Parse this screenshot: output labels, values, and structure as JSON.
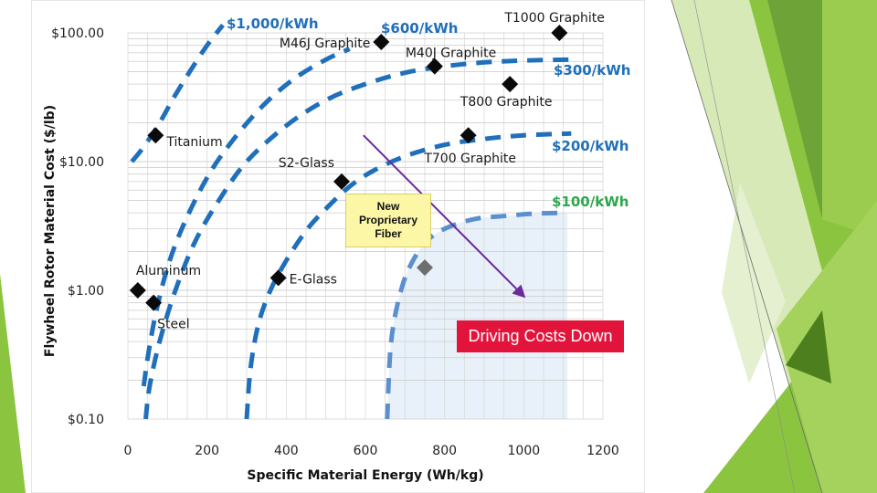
{
  "theme": {
    "light_green": "#b9d871",
    "green": "#8bc53f",
    "dark_green": "#4e7f1e",
    "blue": "#1f6fba",
    "light_blue": "#5b8fd0",
    "dollar_green": "#2aa84a",
    "arrow_purple": "#6a2a9a",
    "callout_red": "#e3143b",
    "callout_yellow": "#fbf7a6"
  },
  "annotations": {
    "new_fiber": [
      "New",
      "Proprietary",
      "Fiber"
    ],
    "driving_costs": "Driving Costs Down"
  },
  "chart_data": {
    "type": "scatter",
    "xlabel": "Specific Material Energy (Wh/kg)",
    "ylabel": "Flywheel Rotor Material  Cost ($/lb)",
    "xlim": [
      0,
      1200
    ],
    "ylim": [
      0.1,
      100
    ],
    "y_scale": "log",
    "x_ticks": [
      "0",
      "200",
      "400",
      "600",
      "800",
      "1000",
      "1200"
    ],
    "y_ticks": [
      {
        "value": 100,
        "label": "$100.00"
      },
      {
        "value": 10,
        "label": "$10.00"
      },
      {
        "value": 1,
        "label": "$1.00"
      },
      {
        "value": 0.1,
        "label": "$0.10"
      }
    ],
    "grid": true,
    "points": [
      {
        "name": "Titanium",
        "x": 70,
        "y": 16
      },
      {
        "name": "Aluminum",
        "x": 25,
        "y": 1.0
      },
      {
        "name": "Steel",
        "x": 65,
        "y": 0.8
      },
      {
        "name": "E-Glass",
        "x": 380,
        "y": 1.25
      },
      {
        "name": "S2-Glass",
        "x": 540,
        "y": 7
      },
      {
        "name": "M46J Graphite",
        "x": 640,
        "y": 85
      },
      {
        "name": "M40J Graphite",
        "x": 775,
        "y": 55
      },
      {
        "name": "T1000 Graphite",
        "x": 1090,
        "y": 100
      },
      {
        "name": "T800 Graphite",
        "x": 965,
        "y": 40
      },
      {
        "name": "T700 Graphite",
        "x": 860,
        "y": 16
      },
      {
        "name": "",
        "x": 750,
        "y": 1.5
      }
    ],
    "curves": [
      {
        "name": "$1,000/kWh",
        "points": [
          [
            10,
            10
          ],
          [
            40,
            13
          ],
          [
            80,
            20
          ],
          [
            120,
            33
          ],
          [
            160,
            52
          ],
          [
            200,
            80
          ],
          [
            240,
            115
          ]
        ]
      },
      {
        "name": "$600/kWh",
        "points": [
          [
            40,
            0.18
          ],
          [
            50,
            0.3
          ],
          [
            70,
            0.65
          ],
          [
            100,
            1.5
          ],
          [
            140,
            3.2
          ],
          [
            200,
            7.5
          ],
          [
            260,
            14
          ],
          [
            340,
            27
          ],
          [
            420,
            44
          ],
          [
            500,
            62
          ],
          [
            560,
            75
          ]
        ]
      },
      {
        "name": "$300/kWh",
        "points": [
          [
            45,
            0.1
          ],
          [
            55,
            0.18
          ],
          [
            80,
            0.4
          ],
          [
            120,
            1.0
          ],
          [
            170,
            2.4
          ],
          [
            230,
            5
          ],
          [
            300,
            10
          ],
          [
            400,
            19
          ],
          [
            500,
            30
          ],
          [
            600,
            40
          ],
          [
            700,
            49
          ],
          [
            800,
            55
          ],
          [
            900,
            59
          ],
          [
            1000,
            61
          ],
          [
            1120,
            62
          ]
        ]
      },
      {
        "name": "$200/kWh",
        "points": [
          [
            300,
            0.1
          ],
          [
            310,
            0.25
          ],
          [
            330,
            0.55
          ],
          [
            360,
            1.0
          ],
          [
            400,
            1.7
          ],
          [
            450,
            2.9
          ],
          [
            500,
            4.3
          ],
          [
            560,
            6.4
          ],
          [
            620,
            8.5
          ],
          [
            700,
            11
          ],
          [
            800,
            13.5
          ],
          [
            900,
            15
          ],
          [
            1000,
            16
          ],
          [
            1120,
            16.5
          ]
        ]
      },
      {
        "name": "$100/kWh",
        "points": [
          [
            655,
            0.1
          ],
          [
            665,
            0.4
          ],
          [
            690,
            1.0
          ],
          [
            720,
            1.7
          ],
          [
            760,
            2.5
          ],
          [
            810,
            3.1
          ],
          [
            880,
            3.6
          ],
          [
            960,
            3.8
          ],
          [
            1030,
            3.95
          ],
          [
            1110,
            4.0
          ]
        ]
      }
    ],
    "curve_labels": [
      {
        "text": "$1,000/kWh",
        "color": "blue"
      },
      {
        "text": "$600/kWh",
        "color": "blue"
      },
      {
        "text": "$300/kWh",
        "color": "blue"
      },
      {
        "text": "$200/kWh",
        "color": "blue"
      },
      {
        "text": "$100/kWh",
        "color": "green"
      }
    ],
    "trend_arrow": {
      "from": [
        595,
        16
      ],
      "to": [
        1000,
        0.9
      ]
    }
  }
}
